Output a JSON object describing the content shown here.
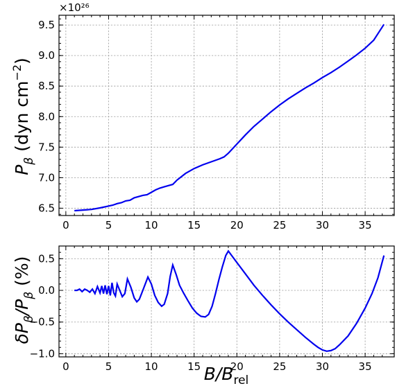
{
  "chart_data": [
    {
      "type": "line",
      "name": "top-panel",
      "x_ticks": [
        "0",
        "5",
        "10",
        "15",
        "20",
        "25",
        "30",
        "35"
      ],
      "xlim": [
        -0.8,
        38.4
      ],
      "y_ticks": [
        "6.5",
        "7.0",
        "7.5",
        "8.0",
        "8.5",
        "9.0",
        "9.5"
      ],
      "ylim": [
        6.38,
        9.66
      ],
      "y_exponent": "×10²⁶",
      "ylabel_main": "P",
      "ylabel_sub": "β",
      "ylabel_rest": " (dyn cm",
      "ylabel_sup": "−2",
      "ylabel_close": ")",
      "grid": true,
      "color": "#0000ee",
      "x": [
        1.0,
        2.0,
        3.0,
        4.0,
        5.0,
        5.5,
        6.0,
        6.5,
        7.0,
        7.5,
        8.0,
        8.5,
        9.0,
        9.5,
        10.0,
        10.5,
        11.0,
        11.5,
        12.0,
        12.5,
        13.0,
        14.0,
        15.0,
        16.0,
        17.0,
        18.0,
        18.5,
        19.0,
        20.0,
        21.0,
        22.0,
        23.0,
        24.0,
        25.0,
        26.0,
        27.0,
        28.0,
        29.0,
        30.0,
        31.0,
        32.0,
        33.0,
        34.0,
        35.0,
        36.0,
        37.2
      ],
      "y": [
        6.46,
        6.47,
        6.48,
        6.505,
        6.535,
        6.55,
        6.575,
        6.59,
        6.62,
        6.63,
        6.67,
        6.69,
        6.71,
        6.72,
        6.76,
        6.8,
        6.83,
        6.85,
        6.87,
        6.89,
        6.96,
        7.07,
        7.15,
        7.21,
        7.26,
        7.31,
        7.34,
        7.4,
        7.55,
        7.7,
        7.84,
        7.96,
        8.08,
        8.19,
        8.29,
        8.38,
        8.47,
        8.55,
        8.64,
        8.72,
        8.81,
        8.91,
        9.01,
        9.12,
        9.25,
        9.51
      ]
    },
    {
      "type": "line",
      "name": "bottom-panel",
      "x_ticks": [
        "0",
        "5",
        "10",
        "15",
        "20",
        "25",
        "30",
        "35"
      ],
      "xlim": [
        -0.8,
        38.4
      ],
      "y_ticks": [
        "0.5",
        "0.0",
        "−0.5",
        "−1.0"
      ],
      "y_tick_values": [
        0.5,
        0.0,
        -0.5,
        -1.0
      ],
      "ylim": [
        -1.05,
        0.7
      ],
      "ylabel": "δP",
      "ylabel_parts": [
        "δP",
        "β",
        "/P",
        "β",
        " (%)"
      ],
      "xlabel_main": "B/B",
      "xlabel_sub": "rel",
      "grid": true,
      "color": "#0000ee",
      "x": [
        1.0,
        1.3,
        1.6,
        1.9,
        2.2,
        2.5,
        2.8,
        3.1,
        3.4,
        3.7,
        4.0,
        4.2,
        4.4,
        4.6,
        4.8,
        5.0,
        5.2,
        5.4,
        5.6,
        5.8,
        6.0,
        6.3,
        6.6,
        6.9,
        7.2,
        7.6,
        8.0,
        8.3,
        8.6,
        9.0,
        9.6,
        10.0,
        10.4,
        10.8,
        11.2,
        11.5,
        11.9,
        12.2,
        12.5,
        12.9,
        13.3,
        13.8,
        14.3,
        14.8,
        15.3,
        15.8,
        16.3,
        16.7,
        17.1,
        17.5,
        17.9,
        18.3,
        18.7,
        19.0,
        19.5,
        20.0,
        21.0,
        22.0,
        23.0,
        24.0,
        25.0,
        26.0,
        27.0,
        28.0,
        29.0,
        29.5,
        30.0,
        30.5,
        31.0,
        31.5,
        32.0,
        33.0,
        34.0,
        35.0,
        35.8,
        36.5,
        37.2
      ],
      "y": [
        0.0,
        0.0,
        0.02,
        -0.02,
        0.02,
        0.0,
        -0.03,
        0.02,
        -0.05,
        0.06,
        -0.04,
        0.07,
        -0.05,
        0.08,
        -0.06,
        0.07,
        -0.08,
        0.12,
        -0.04,
        -0.09,
        0.1,
        0.0,
        -0.1,
        -0.05,
        0.18,
        0.05,
        -0.12,
        -0.18,
        -0.14,
        0.0,
        0.21,
        0.1,
        -0.08,
        -0.19,
        -0.25,
        -0.22,
        -0.05,
        0.22,
        0.4,
        0.25,
        0.08,
        -0.05,
        -0.17,
        -0.28,
        -0.36,
        -0.41,
        -0.42,
        -0.38,
        -0.25,
        -0.05,
        0.17,
        0.37,
        0.55,
        0.62,
        0.53,
        0.44,
        0.26,
        0.08,
        -0.08,
        -0.23,
        -0.37,
        -0.5,
        -0.62,
        -0.74,
        -0.85,
        -0.9,
        -0.94,
        -0.96,
        -0.95,
        -0.92,
        -0.86,
        -0.72,
        -0.52,
        -0.28,
        -0.05,
        0.2,
        0.55
      ]
    }
  ]
}
